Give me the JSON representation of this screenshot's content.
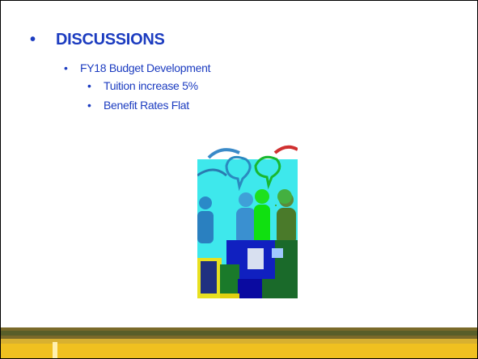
{
  "slide": {
    "bullets": [
      {
        "text": "DISCUSSIONS",
        "items": [
          {
            "text": "FY18 Budget Development",
            "items": [
              {
                "text": "Tuition increase 5%"
              },
              {
                "text": "Benefit Rates Flat"
              }
            ]
          }
        ]
      }
    ]
  }
}
